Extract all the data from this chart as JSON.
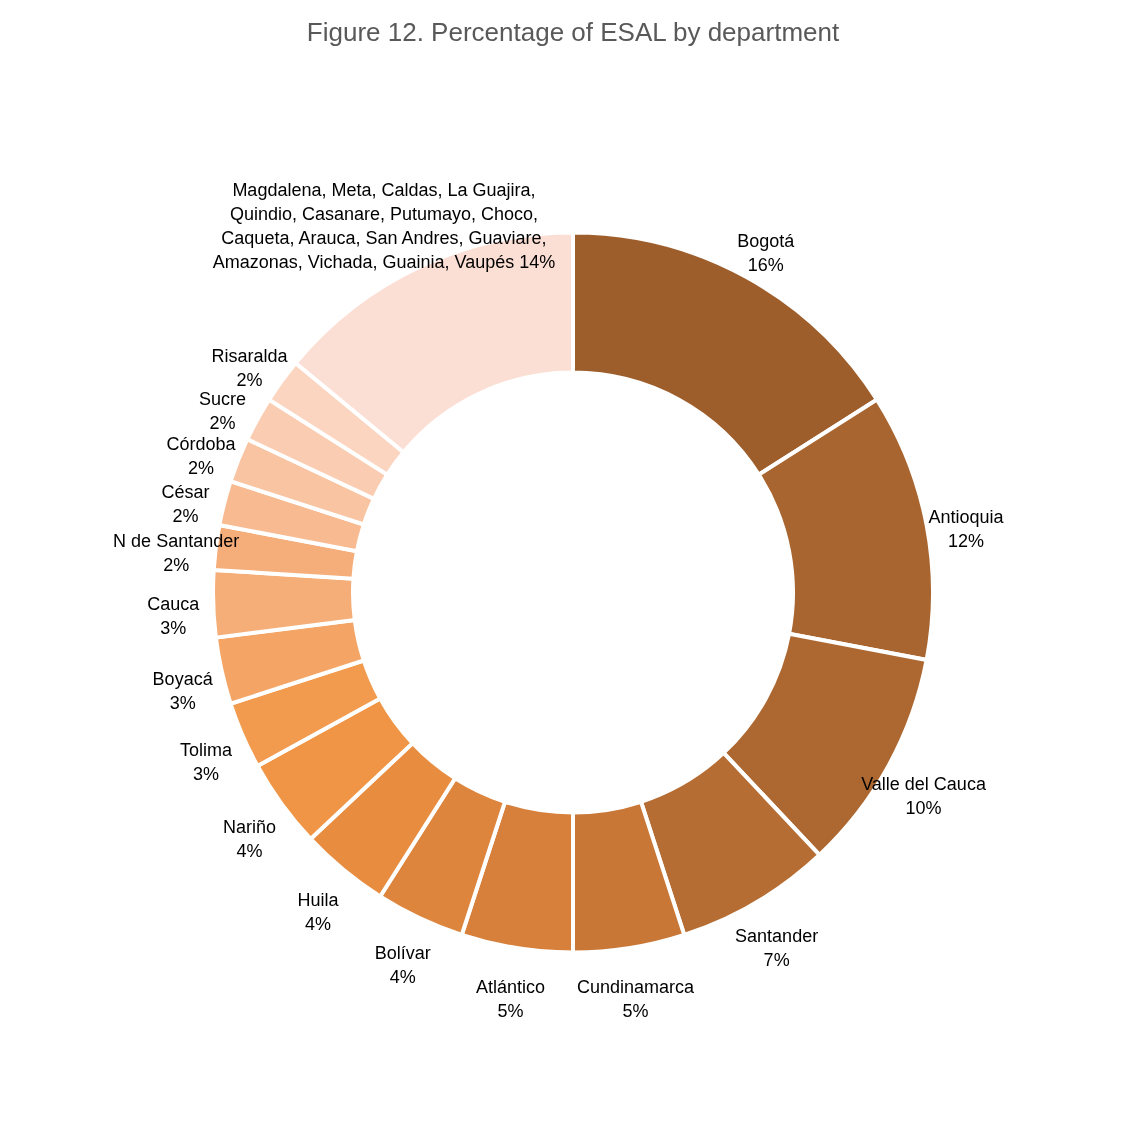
{
  "chart_data": {
    "type": "donut",
    "title": "Figure 12. Percentage of ESAL by department",
    "categories": [
      "Bogotá",
      "Antioquia",
      "Valle del Cauca",
      "Santander",
      "Cundinamarca",
      "Atlántico",
      "Bolívar",
      "Huila",
      "Nariño",
      "Tolima",
      "Boyacá",
      "Cauca",
      "N de Santander",
      "César",
      "Córdoba",
      "Sucre",
      "Risaralda",
      "Magdalena, Meta, Caldas, La Guajira, Quindio, Casanare, Putumayo, Choco, Caqueta, Arauca, San Andres, Guaviare, Amazonas, Vichada, Guainia, Vaupés"
    ],
    "values": [
      16,
      12,
      10,
      7,
      5,
      5,
      4,
      4,
      4,
      3,
      3,
      3,
      2,
      2,
      2,
      2,
      2,
      14
    ],
    "value_labels": [
      "16%",
      "12%",
      "10%",
      "7%",
      "5%",
      "5%",
      "4%",
      "4%",
      "4%",
      "3%",
      "3%",
      "3%",
      "2%",
      "2%",
      "2%",
      "2%",
      "2%",
      "14%"
    ],
    "colors": [
      "#9e5e2c",
      "#a8652f",
      "#ad6831",
      "#b56d33",
      "#c97736",
      "#d6803b",
      "#de853d",
      "#e88c40",
      "#f09545",
      "#f29b4f",
      "#f4a565",
      "#f6ae78",
      "#f5ad7a",
      "#f8ba90",
      "#f9c4a2",
      "#facdb2",
      "#fbd5c0",
      "#fcdfd4"
    ]
  }
}
